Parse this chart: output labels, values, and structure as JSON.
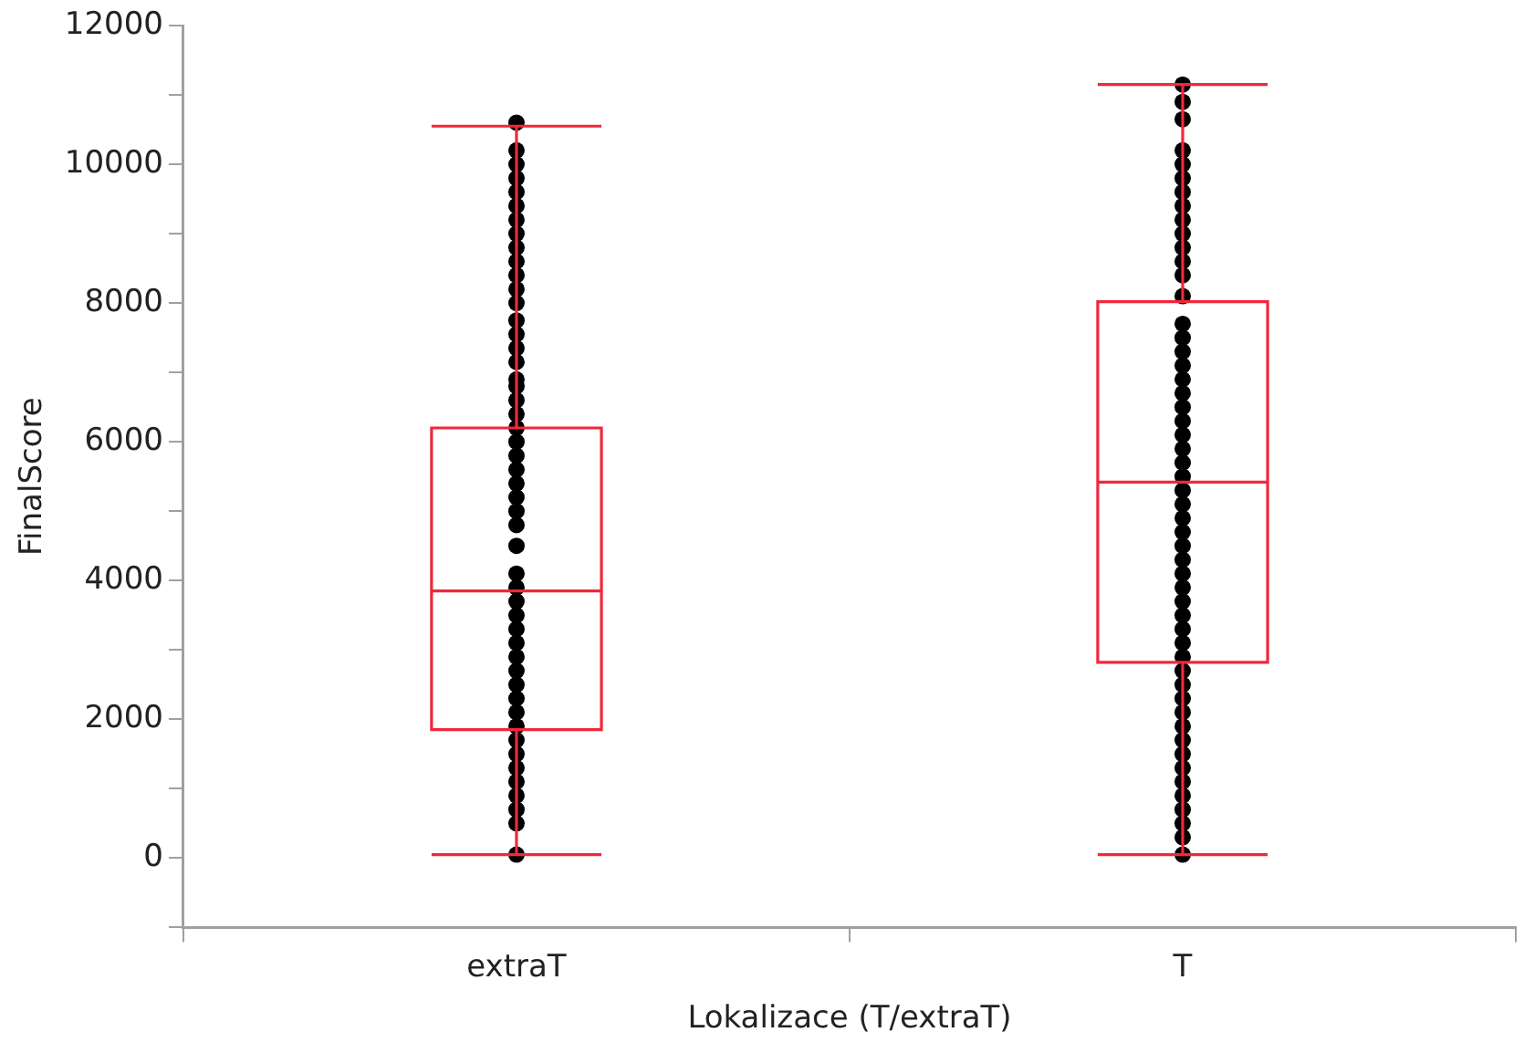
{
  "chart_data": {
    "type": "box",
    "xlabel": "Lokalizace (T/extraT)",
    "ylabel": "FinalScore",
    "categories": [
      "extraT",
      "T"
    ],
    "boxes": [
      {
        "low": 50,
        "q1": 1850,
        "median": 3850,
        "q3": 6200,
        "high": 10550
      },
      {
        "low": 50,
        "q1": 2820,
        "median": 5420,
        "q3": 8020,
        "high": 11150
      }
    ],
    "color": "#f0283c",
    "series": [
      {
        "type": "scatter",
        "color": "#000000",
        "x": [
          "extraT",
          "extraT",
          "extraT",
          "extraT",
          "extraT",
          "extraT",
          "extraT",
          "extraT",
          "extraT",
          "extraT",
          "extraT",
          "extraT",
          "extraT",
          "extraT",
          "extraT",
          "extraT",
          "extraT",
          "extraT",
          "extraT",
          "extraT",
          "extraT",
          "extraT",
          "extraT",
          "extraT",
          "extraT",
          "extraT",
          "extraT",
          "extraT",
          "extraT",
          "extraT",
          "extraT",
          "extraT",
          "extraT",
          "extraT",
          "extraT",
          "extraT",
          "extraT",
          "extraT",
          "extraT",
          "extraT",
          "extraT",
          "extraT",
          "extraT",
          "extraT",
          "extraT",
          "extraT",
          "extraT",
          "extraT",
          "extraT",
          "extraT",
          "T",
          "T",
          "T",
          "T",
          "T",
          "T",
          "T",
          "T",
          "T",
          "T",
          "T",
          "T",
          "T",
          "T",
          "T",
          "T",
          "T",
          "T",
          "T",
          "T",
          "T",
          "T",
          "T",
          "T",
          "T",
          "T",
          "T",
          "T",
          "T",
          "T",
          "T",
          "T",
          "T",
          "T",
          "T",
          "T",
          "T",
          "T",
          "T",
          "T",
          "T",
          "T",
          "T",
          "T",
          "T",
          "T",
          "T",
          "T",
          "T",
          "T",
          "T",
          "T",
          "T"
        ],
        "values": [
          10600,
          10200,
          10000,
          9800,
          9600,
          9400,
          9200,
          9000,
          8800,
          8600,
          8400,
          8200,
          8000,
          7750,
          7550,
          7350,
          7150,
          6900,
          6800,
          6600,
          6400,
          6200,
          6000,
          5800,
          5600,
          5400,
          5200,
          5000,
          4800,
          4500,
          4100,
          3900,
          3700,
          3500,
          3300,
          3100,
          2900,
          2700,
          2500,
          2300,
          2100,
          1900,
          1700,
          1500,
          1300,
          1100,
          900,
          700,
          500,
          50,
          11150,
          10900,
          10650,
          10200,
          10000,
          9800,
          9600,
          9400,
          9200,
          9000,
          8800,
          8600,
          8400,
          8100,
          7700,
          7500,
          7300,
          7100,
          6900,
          6700,
          6500,
          6300,
          6100,
          5900,
          5700,
          5500,
          5300,
          5100,
          4900,
          4700,
          4500,
          4300,
          4100,
          3900,
          3700,
          3500,
          3300,
          3100,
          2900,
          2700,
          2500,
          2300,
          2100,
          1900,
          1700,
          1500,
          1300,
          1100,
          900,
          700,
          500,
          300,
          50
        ]
      }
    ],
    "marker": "circle",
    "ylim": [
      -1000,
      12000
    ],
    "yticks": [
      {
        "value": -1000,
        "label": null
      },
      0,
      {
        "value": 1000,
        "label": null
      },
      2000,
      {
        "value": 3000,
        "label": null
      },
      4000,
      {
        "value": 5000,
        "label": null
      },
      6000,
      {
        "value": 7000,
        "label": null
      },
      8000,
      {
        "value": 9000,
        "label": null
      },
      10000,
      {
        "value": 11000,
        "label": null
      },
      12000
    ],
    "grid": false,
    "legend": false
  }
}
